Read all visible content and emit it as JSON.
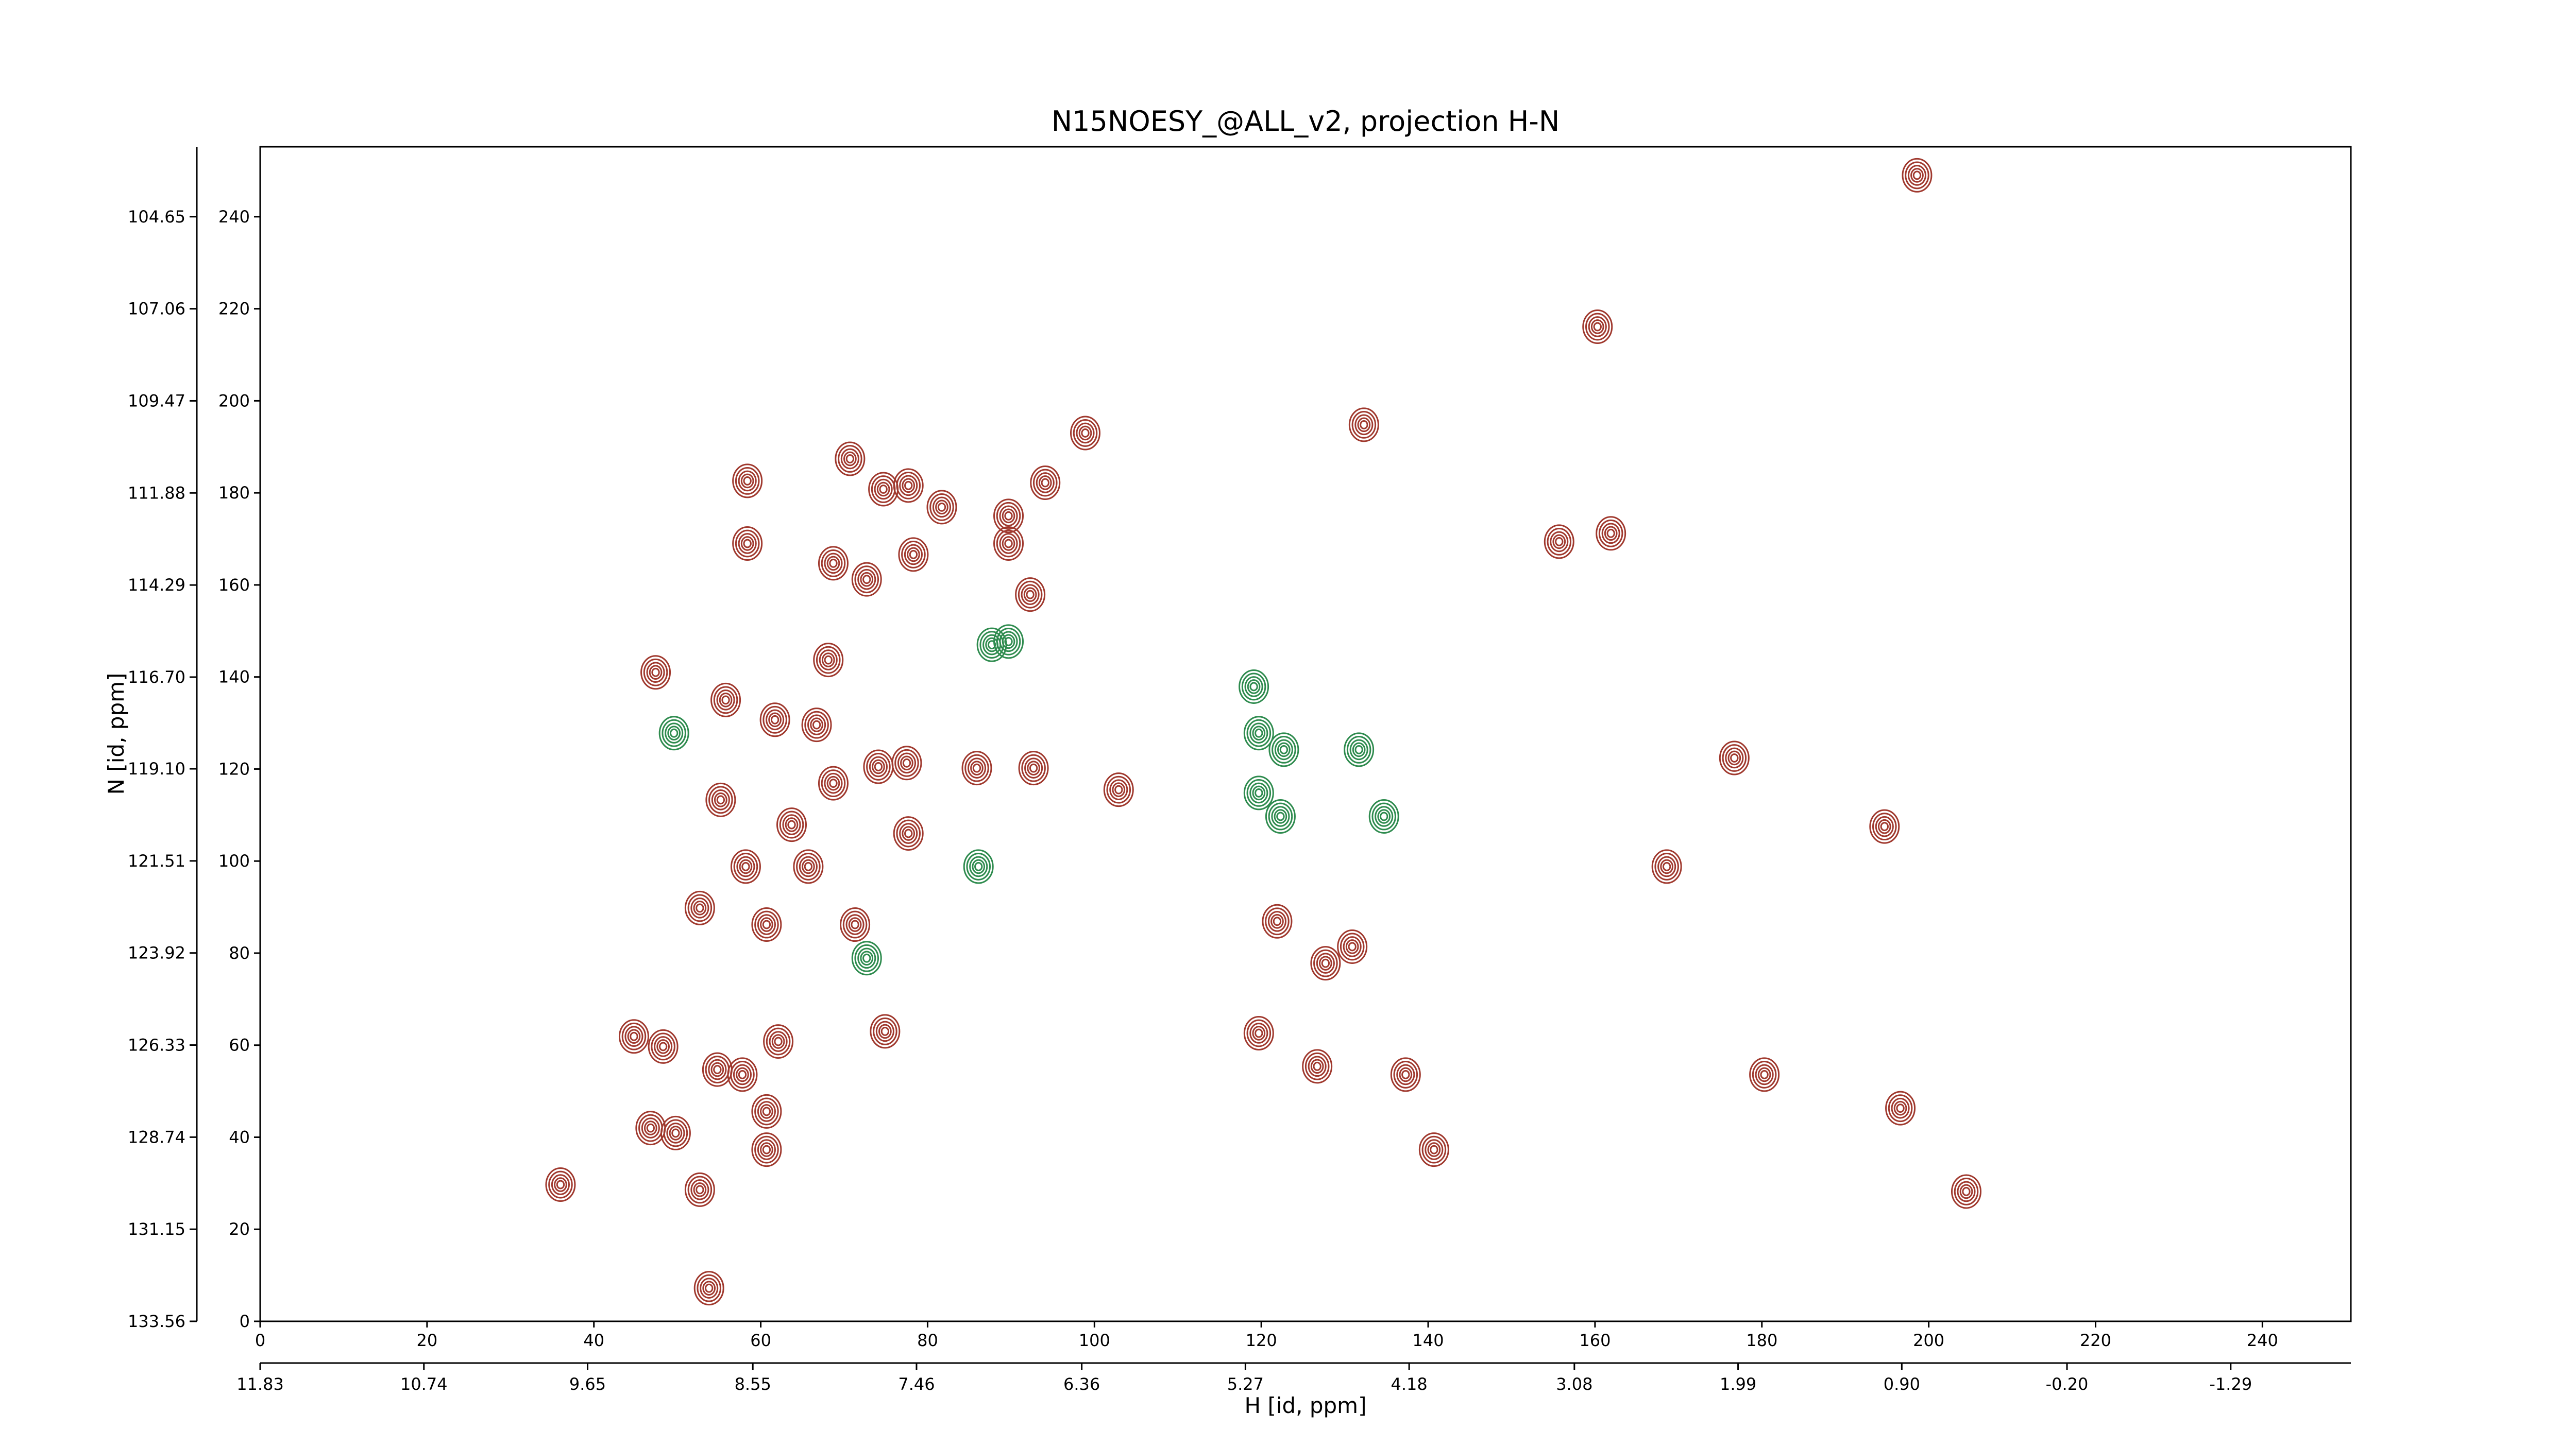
{
  "chart_data": {
    "type": "contour",
    "title": "N15NOESY_@ALL_v2, projection H-N",
    "xlabel": "H [id, ppm]",
    "ylabel": "N [id, ppm]",
    "xlim": [
      0,
      250.6
    ],
    "ylim": [
      0,
      255.2
    ],
    "xticks": [
      0,
      20,
      40,
      60,
      80,
      100,
      120,
      140,
      160,
      180,
      200,
      220,
      240
    ],
    "yticks": [
      0,
      20,
      40,
      60,
      80,
      100,
      120,
      140,
      160,
      180,
      200,
      220,
      240
    ],
    "x2lim": [
      11.83,
      -2.09
    ],
    "x2ticks": [
      11.83,
      10.74,
      9.65,
      8.55,
      7.46,
      6.36,
      5.27,
      4.18,
      3.08,
      1.99,
      {
        "value": 0.9,
        "label": "0.90"
      },
      {
        "value": -0.2,
        "label": "-0.20"
      },
      -1.29
    ],
    "y2lim": [
      133.56,
      102.82
    ],
    "y2ticks": [
      104.65,
      107.06,
      109.47,
      111.88,
      114.29,
      {
        "value": 116.7,
        "label": "116.70"
      },
      {
        "value": 119.1,
        "label": "119.10"
      },
      121.51,
      123.92,
      126.33,
      128.74,
      131.15,
      133.56
    ],
    "series": [
      {
        "color": "#a0392e",
        "x": [
          70.7,
          58.4,
          74.7,
          77.7,
          81.7,
          89.7,
          94.1,
          98.9,
          58.4,
          68.7,
          72.7,
          78.3,
          89.7,
          92.3,
          47.4,
          55.8,
          68.1,
          61.7,
          66.7,
          74.1,
          77.5,
          85.9,
          92.7,
          102.9,
          55.2,
          63.7,
          68.7,
          77.7,
          58.2,
          65.7,
          52.7,
          60.7,
          71.3,
          44.8,
          48.3,
          54.8,
          57.8,
          62.1,
          60.7,
          60.7,
          46.8,
          49.8,
          74.9,
          36.0,
          52.7,
          53.8,
          132.3,
          119.7,
          126.7,
          137.3,
          140.7,
          121.9,
          127.7,
          130.9,
          160.3,
          176.7,
          194.7,
          196.6,
          204.5,
          180.3,
          198.6,
          161.9,
          155.7,
          168.6
        ],
        "y": [
          187.4,
          182.6,
          180.8,
          181.6,
          176.9,
          175.0,
          182.2,
          193.0,
          169.0,
          164.7,
          161.2,
          166.6,
          169.0,
          157.9,
          141.0,
          135.0,
          143.7,
          130.7,
          129.6,
          120.5,
          121.3,
          120.2,
          120.2,
          115.5,
          113.3,
          107.9,
          116.9,
          106.0,
          98.8,
          98.8,
          89.8,
          86.2,
          86.2,
          61.9,
          59.7,
          54.7,
          53.6,
          60.8,
          45.6,
          37.3,
          42.0,
          40.9,
          63.0,
          29.7,
          28.6,
          7.2,
          194.8,
          62.6,
          55.4,
          53.6,
          37.3,
          86.9,
          77.8,
          81.4,
          216.1,
          122.4,
          107.5,
          46.3,
          28.2,
          53.6,
          249.0,
          171.2,
          169.4,
          98.8
        ]
      },
      {
        "color": "#2e8b4e",
        "x": [
          89.7,
          87.7,
          119.1,
          119.7,
          122.7,
          131.7,
          134.7,
          86.1,
          72.7,
          49.6,
          119.7,
          122.3
        ],
        "y": [
          147.7,
          147.0,
          137.9,
          127.8,
          124.2,
          124.2,
          109.7,
          98.8,
          78.9,
          127.8,
          114.8,
          109.7
        ]
      }
    ]
  }
}
